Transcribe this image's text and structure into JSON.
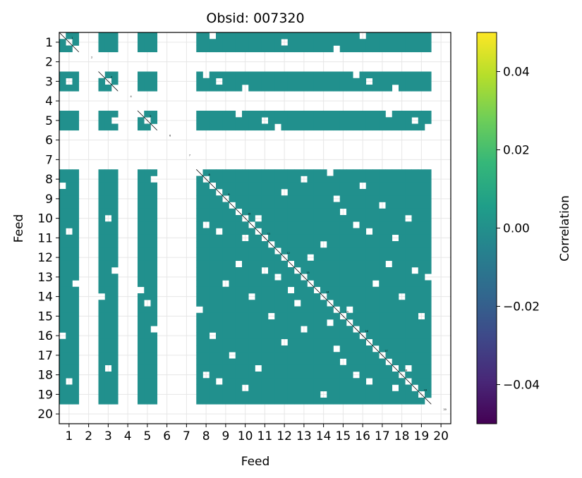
{
  "chart_data": {
    "type": "heatmap",
    "title": "Obsid: 007320",
    "xlabel": "Feed",
    "ylabel": "Feed",
    "x_ticks": [
      "1",
      "2",
      "3",
      "4",
      "5",
      "6",
      "7",
      "8",
      "9",
      "10",
      "11",
      "12",
      "13",
      "14",
      "15",
      "16",
      "17",
      "18",
      "19",
      "20"
    ],
    "y_ticks": [
      "1",
      "2",
      "3",
      "4",
      "5",
      "6",
      "7",
      "8",
      "9",
      "10",
      "11",
      "12",
      "13",
      "14",
      "15",
      "16",
      "17",
      "18",
      "19",
      "20"
    ],
    "feeds": [
      1,
      2,
      3,
      4,
      5,
      6,
      7,
      8,
      9,
      10,
      11,
      12,
      13,
      14,
      15,
      16,
      17,
      18,
      19,
      20
    ],
    "active_feeds": [
      1,
      3,
      5,
      8,
      9,
      10,
      11,
      12,
      13,
      14,
      15,
      16,
      17,
      18,
      19
    ],
    "inactive_feeds": [
      2,
      4,
      6,
      7,
      20
    ],
    "off_diagonal_value": 0.0,
    "diagonal": "masked (thin black line)",
    "grid": true,
    "colorbar": {
      "label": "Correlation",
      "colormap": "viridis",
      "vmin": -0.05,
      "vmax": 0.05,
      "ticks": [
        0.04,
        0.02,
        0.0,
        -0.02,
        -0.04
      ],
      "tick_labels": [
        "0.04",
        "0.02",
        "0.00",
        "−0.02",
        "−0.04"
      ]
    },
    "colors": {
      "cell": "#21908d",
      "grid": "#e6e6e6",
      "viridis": [
        "#440154",
        "#482878",
        "#3e4989",
        "#31688e",
        "#26828e",
        "#1f9e89",
        "#35b779",
        "#6ece58",
        "#b5de2b",
        "#fde725"
      ]
    }
  }
}
